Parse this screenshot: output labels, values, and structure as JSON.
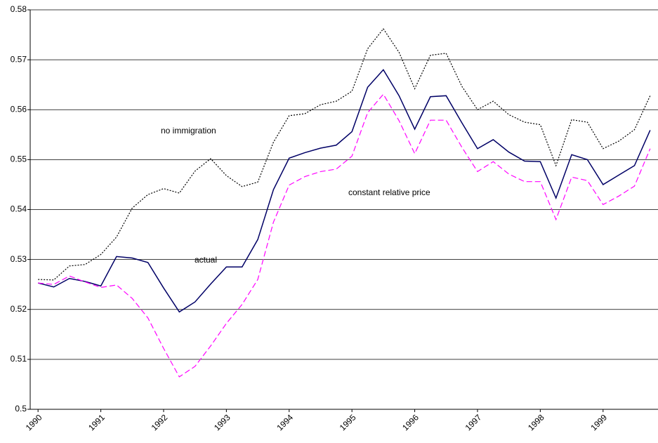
{
  "chart_data": {
    "type": "line",
    "categories": [
      "1990",
      null,
      null,
      null,
      "1991",
      null,
      null,
      null,
      "1992",
      null,
      null,
      null,
      "1993",
      null,
      null,
      null,
      "1994",
      null,
      null,
      null,
      "1995",
      null,
      null,
      null,
      "1996",
      null,
      null,
      null,
      "1997",
      null,
      null,
      null,
      "1998",
      null,
      null,
      null,
      "1999",
      null,
      null,
      null
    ],
    "series": [
      {
        "name": "actual",
        "color": "#000066",
        "style": "solid",
        "values": [
          0.5253,
          0.5245,
          0.5262,
          0.5256,
          0.5247,
          0.5306,
          0.5303,
          0.5294,
          0.5243,
          0.5195,
          0.5215,
          0.5251,
          0.5285,
          0.5285,
          0.534,
          0.544,
          0.5503,
          0.5514,
          0.5523,
          0.5529,
          0.5556,
          0.5645,
          0.568,
          0.5628,
          0.5561,
          0.5626,
          0.5628,
          0.5574,
          0.5522,
          0.554,
          0.5515,
          0.5497,
          0.5496,
          0.5423,
          0.551,
          0.55,
          0.545,
          0.5469,
          0.5488,
          0.5559
        ]
      },
      {
        "name": "no immigration",
        "color": "#000000",
        "style": "dotted",
        "values": [
          0.526,
          0.5259,
          0.5287,
          0.529,
          0.531,
          0.5345,
          0.5403,
          0.543,
          0.5442,
          0.5433,
          0.5477,
          0.5502,
          0.5468,
          0.5446,
          0.5455,
          0.5535,
          0.5588,
          0.5592,
          0.561,
          0.5617,
          0.5637,
          0.5722,
          0.5762,
          0.5715,
          0.5642,
          0.5709,
          0.5713,
          0.5647,
          0.56,
          0.5617,
          0.559,
          0.5575,
          0.557,
          0.5488,
          0.558,
          0.5575,
          0.5522,
          0.5537,
          0.556,
          0.5628
        ]
      },
      {
        "name": "constant relative price",
        "color": "#ff00ff",
        "style": "dashed",
        "values": [
          0.5253,
          0.525,
          0.5267,
          0.5255,
          0.5244,
          0.5249,
          0.5222,
          0.5183,
          0.5122,
          0.5065,
          0.5086,
          0.5127,
          0.5172,
          0.521,
          0.526,
          0.5375,
          0.5449,
          0.5466,
          0.5476,
          0.5481,
          0.5507,
          0.5594,
          0.5631,
          0.5578,
          0.5512,
          0.5579,
          0.5579,
          0.5525,
          0.5476,
          0.5496,
          0.5471,
          0.5456,
          0.5456,
          0.538,
          0.5465,
          0.5458,
          0.541,
          0.5427,
          0.5447,
          0.5522
        ]
      }
    ],
    "ylim": [
      0.5,
      0.58
    ],
    "yticks": [
      0.5,
      0.51,
      0.52,
      0.53,
      0.54,
      0.55,
      0.56,
      0.57,
      0.58
    ],
    "grid": true
  }
}
